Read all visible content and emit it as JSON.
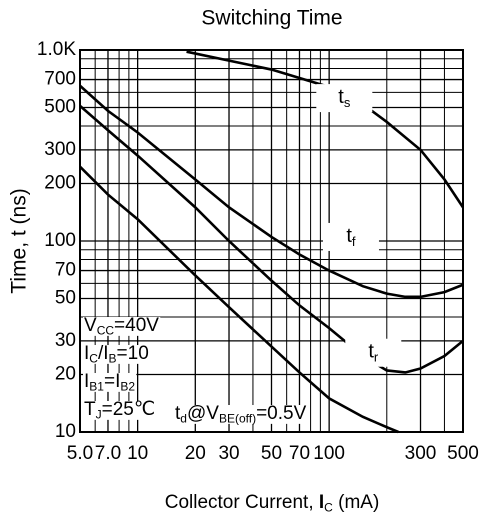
{
  "chart_data": {
    "type": "line",
    "title": "Switching Time",
    "x_label": [
      {
        "text": "Collector Current, "
      },
      {
        "text": "I",
        "bold": true
      },
      {
        "text": "C",
        "sub": true
      },
      {
        "text": " (mA)"
      }
    ],
    "y_label": "Time, t (ns)",
    "xlog": true,
    "ylog": true,
    "grid": true,
    "color": "#000000",
    "xlim": [
      5,
      500
    ],
    "ylim": [
      10,
      1000
    ],
    "xticks": [
      {
        "value": 5,
        "label": "5.0"
      },
      {
        "value": 7,
        "label": "7.0"
      },
      10,
      20,
      30,
      50,
      70,
      100,
      300,
      500
    ],
    "xminor": [
      6,
      8,
      9,
      40,
      60,
      80,
      90,
      200,
      400
    ],
    "yticks": [
      10,
      20,
      30,
      50,
      70,
      100,
      200,
      300,
      500,
      700,
      {
        "value": 1000,
        "label": "1.0K"
      }
    ],
    "yminor": [
      40,
      60,
      80,
      90,
      400,
      600,
      800,
      900
    ],
    "series": [
      {
        "label": [
          {
            "text": "t"
          },
          {
            "text": "s",
            "sub": true
          }
        ],
        "x": [
          18,
          30,
          50,
          100,
          150,
          200,
          300,
          400,
          500
        ],
        "values": [
          980,
          880,
          790,
          640,
          520,
          420,
          300,
          210,
          150
        ],
        "label_at": [
          120,
          560
        ]
      },
      {
        "label": [
          {
            "text": "t"
          },
          {
            "text": "f",
            "sub": true
          }
        ],
        "x": [
          5,
          7,
          10,
          20,
          30,
          50,
          70,
          100,
          150,
          200,
          250,
          300,
          400,
          500
        ],
        "values": [
          650,
          480,
          370,
          210,
          150,
          105,
          85,
          70,
          58,
          53,
          51,
          51,
          54,
          59
        ],
        "label_at": [
          130,
          105
        ]
      },
      {
        "label": [
          {
            "text": "t"
          },
          {
            "text": "r",
            "sub": true
          }
        ],
        "x": [
          5,
          7,
          10,
          20,
          30,
          50,
          70,
          100,
          150,
          200,
          250,
          300,
          400,
          500
        ],
        "values": [
          510,
          380,
          280,
          150,
          100,
          62,
          46,
          35,
          25,
          21,
          20.5,
          21.5,
          25,
          30
        ],
        "label_at": [
          170,
          26
        ]
      },
      {
        "label": null,
        "x": [
          5,
          7,
          10,
          20,
          30,
          50,
          70,
          100,
          150,
          200,
          230
        ],
        "values": [
          245,
          175,
          130,
          66,
          45,
          28,
          20.5,
          15,
          12,
          10.6,
          10
        ],
        "label_at": null
      }
    ],
    "annotations": [
      [
        {
          "text": "V"
        },
        {
          "text": "CC",
          "sub": true
        },
        {
          "text": "=40V"
        }
      ],
      [
        {
          "text": "I"
        },
        {
          "text": "C",
          "sub": true
        },
        {
          "text": "/I"
        },
        {
          "text": "B",
          "sub": true
        },
        {
          "text": "=10"
        }
      ],
      [
        {
          "text": "I"
        },
        {
          "text": "B1",
          "sub": true
        },
        {
          "text": "=I"
        },
        {
          "text": "B2",
          "sub": true
        }
      ],
      [
        {
          "text": "T"
        },
        {
          "text": "J",
          "sub": true
        },
        {
          "text": "=25℃"
        }
      ],
      [
        {
          "text": "t"
        },
        {
          "text": "d",
          "sub": true
        },
        {
          "text": "@V"
        },
        {
          "text": "BE(off)",
          "sub": true
        },
        {
          "text": "=0.5V"
        }
      ]
    ]
  }
}
